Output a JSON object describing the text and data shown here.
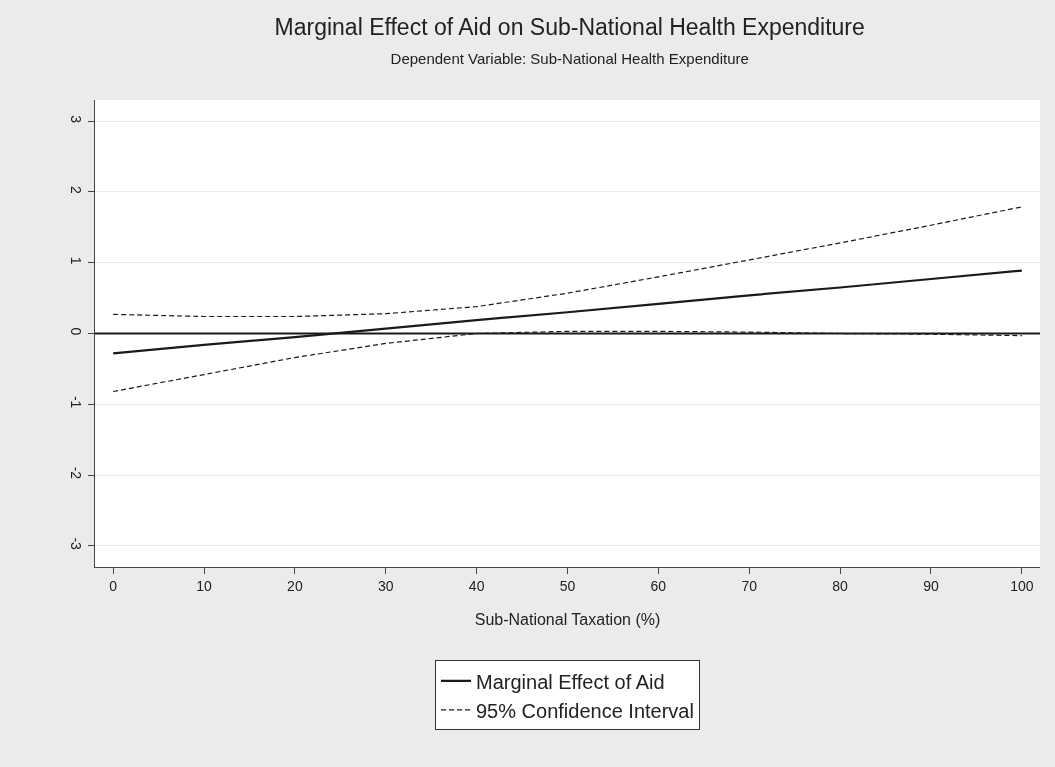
{
  "chart_data": {
    "type": "line",
    "title": "Marginal Effect of Aid on Sub-National Health Expenditure",
    "subtitle": "Dependent Variable: Sub-National Health Expenditure",
    "xlabel": "Sub-National Taxation (%)",
    "x": [
      0,
      10,
      20,
      30,
      40,
      50,
      60,
      70,
      80,
      90,
      100
    ],
    "series": [
      {
        "name": "Marginal Effect of Aid",
        "color": "#1a1a1a",
        "line_style": "solid",
        "values": [
          -0.28,
          -0.16,
          -0.05,
          0.07,
          0.19,
          0.3,
          0.42,
          0.54,
          0.65,
          0.77,
          0.89
        ]
      },
      {
        "name": "95% Confidence Interval",
        "color": "#1a1a1a",
        "line_style": "dashed",
        "values": [
          0.27,
          0.24,
          0.24,
          0.28,
          0.38,
          0.57,
          0.8,
          1.04,
          1.28,
          1.53,
          1.79
        ]
      },
      {
        "color": "#1a1a1a",
        "line_style": "dashed",
        "values": [
          -0.82,
          -0.58,
          -0.34,
          -0.14,
          0.0,
          0.03,
          0.03,
          0.02,
          0.0,
          -0.01,
          -0.03
        ]
      }
    ],
    "ref_lines": [
      {
        "axis": "y",
        "value": 0,
        "color": "#1a1a1a",
        "line_style": "solid"
      }
    ],
    "xlim": [
      -2,
      102
    ],
    "xticks": [
      0,
      10,
      20,
      30,
      40,
      50,
      60,
      70,
      80,
      90,
      100
    ],
    "ylim": [
      -3.3,
      3.3
    ],
    "yticks": [
      -3,
      -2,
      -1,
      0,
      1,
      2,
      3
    ],
    "grid": "y",
    "legend": "bottom",
    "marker": "none"
  }
}
